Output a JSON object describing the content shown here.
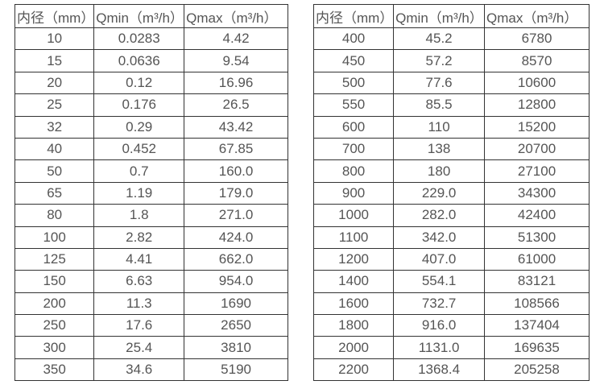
{
  "colors": {
    "background": "#ffffff",
    "text": "#555555",
    "border": "#333333"
  },
  "tables": [
    {
      "name": "flow-spec-small-diameters",
      "headers": [
        "内径（mm）",
        "Qmin（m³/h）",
        "Qmax（m³/h）"
      ],
      "rows": [
        [
          "10",
          "0.0283",
          "4.42"
        ],
        [
          "15",
          "0.0636",
          "9.54"
        ],
        [
          "20",
          "0.12",
          "16.96"
        ],
        [
          "25",
          "0.176",
          "26.5"
        ],
        [
          "32",
          "0.29",
          "43.42"
        ],
        [
          "40",
          "0.452",
          "67.85"
        ],
        [
          "50",
          "0.7",
          "160.0"
        ],
        [
          "65",
          "1.19",
          "179.0"
        ],
        [
          "80",
          "1.8",
          "271.0"
        ],
        [
          "100",
          "2.82",
          "424.0"
        ],
        [
          "125",
          "4.41",
          "662.0"
        ],
        [
          "150",
          "6.63",
          "954.0"
        ],
        [
          "200",
          "11.3",
          "1690"
        ],
        [
          "250",
          "17.6",
          "2650"
        ],
        [
          "300",
          "25.4",
          "3810"
        ],
        [
          "350",
          "34.6",
          "5190"
        ]
      ]
    },
    {
      "name": "flow-spec-large-diameters",
      "headers": [
        "内径（mm）",
        "Qmin（m³/h）",
        "Qmax（m³/h）"
      ],
      "rows": [
        [
          "400",
          "45.2",
          "6780"
        ],
        [
          "450",
          "57.2",
          "8570"
        ],
        [
          "500",
          "77.6",
          "10600"
        ],
        [
          "550",
          "85.5",
          "12800"
        ],
        [
          "600",
          "110",
          "15200"
        ],
        [
          "700",
          "138",
          "20700"
        ],
        [
          "800",
          "180",
          "27100"
        ],
        [
          "900",
          "229.0",
          "34300"
        ],
        [
          "1000",
          "282.0",
          "42400"
        ],
        [
          "1100",
          "342.0",
          "51300"
        ],
        [
          "1200",
          "407.0",
          "61000"
        ],
        [
          "1400",
          "554.1",
          "83121"
        ],
        [
          "1600",
          "732.7",
          "108566"
        ],
        [
          "1800",
          "916.0",
          "137404"
        ],
        [
          "2000",
          "1131.0",
          "169635"
        ],
        [
          "2200",
          "1368.4",
          "205258"
        ]
      ]
    }
  ]
}
